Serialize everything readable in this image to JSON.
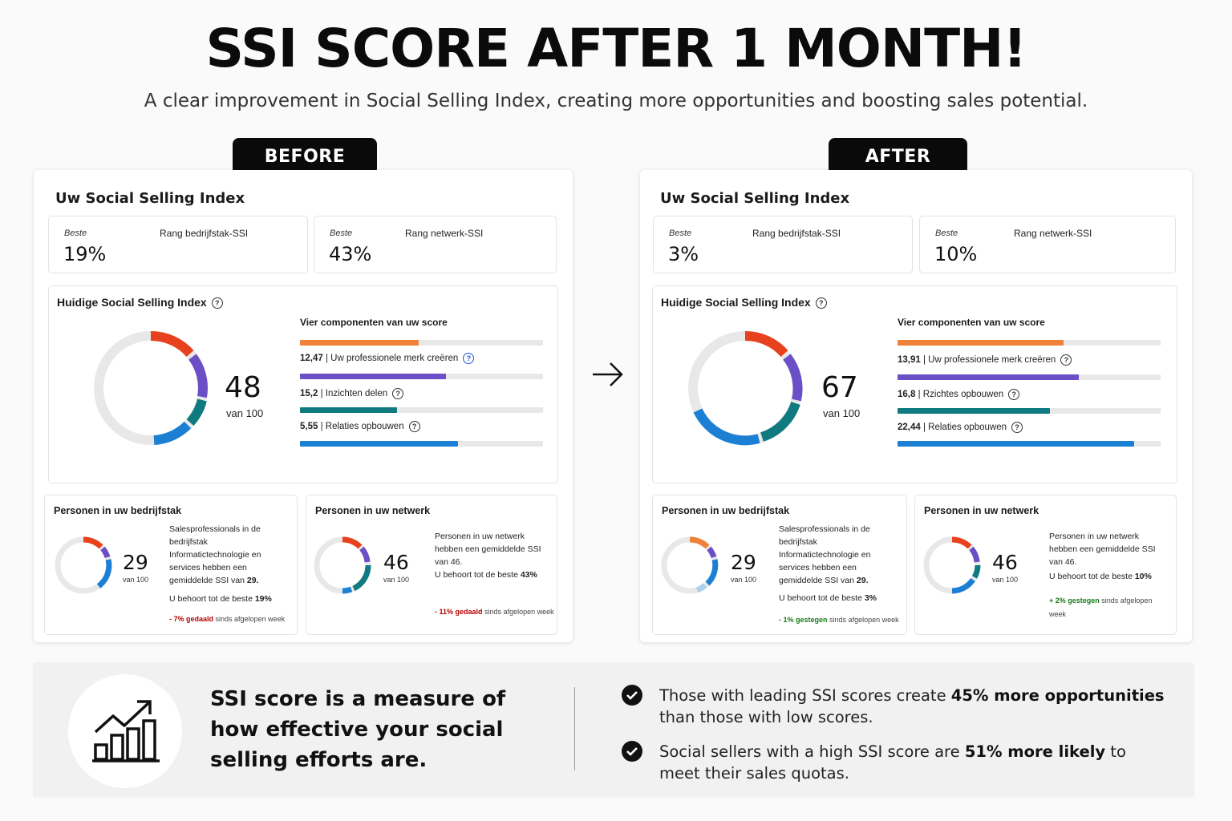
{
  "header": {
    "title": "SSI SCORE AFTER 1 MONTH!",
    "subtitle": "A clear improvement in Social Selling Index, creating more opportunities and boosting sales potential."
  },
  "before": {
    "tag": "BEFORE",
    "panel_title": "Uw Social Selling Index",
    "rank_industry": {
      "best": "Beste",
      "label": "Rang bedrijfstak-SSI",
      "value": "19%"
    },
    "rank_network": {
      "best": "Beste",
      "label": "Rang netwerk-SSI",
      "value": "43%"
    },
    "current": {
      "title": "Huidige Social Selling Index",
      "score": "48",
      "score_sub": "van 100",
      "components_title": "Vier componenten van uw score",
      "components": [
        {
          "value": "12,47",
          "label": "Uw professionele merk creëren",
          "fill": 0.49,
          "color": "#f0813a"
        },
        {
          "value": "15,2",
          "label": "Inzichten delen",
          "fill": 0.6,
          "color": "#6a4fc6"
        },
        {
          "value": "5,55",
          "label": "Relaties opbouwen",
          "fill": 0.4,
          "color": "#0f7a80"
        },
        {
          "value": "",
          "label": "",
          "fill": 0.65,
          "color": "#1b7fd4"
        }
      ]
    },
    "industry_people": {
      "title": "Personen in uw bedrijfstak",
      "score": "29",
      "score_sub": "van 100",
      "desc": "Salesprofessionals in de bedrijfstak Informatictechnologie en services hebben een gemiddelde SSI van",
      "desc_value": "29.",
      "rank_text": "U behoort tot de beste",
      "rank_value": "19%",
      "change_value": "- 7% gedaald",
      "change_text": "sinds afgelopen week"
    },
    "network_people": {
      "title": "Personen in uw netwerk",
      "score": "46",
      "score_sub": "van 100",
      "desc": "Personen in uw netwerk hebben een gemiddelde SSI van 46.",
      "rank_text": "U behoort tot de beste",
      "rank_value": "43%",
      "change_value": "- 11% gedaald",
      "change_text": "sinds afgelopen week"
    }
  },
  "after": {
    "tag": "AFTER",
    "panel_title": "Uw Social Selling Index",
    "rank_industry": {
      "best": "Beste",
      "label": "Rang bedrijfstak-SSI",
      "value": "3%"
    },
    "rank_network": {
      "best": "Beste",
      "label": "Rang netwerk-SSI",
      "value": "10%"
    },
    "current": {
      "title": "Huidige Social Selling Index",
      "score": "67",
      "score_sub": "van 100",
      "components_title": "Vier componenten van uw score",
      "components": [
        {
          "value": "13,91",
          "label": "Uw professionele merk creëren",
          "fill": 0.63,
          "color": "#f0813a"
        },
        {
          "value": "16,8",
          "label": "Rzichtes opbouwen",
          "fill": 0.69,
          "color": "#6a4fc6"
        },
        {
          "value": "22,44",
          "label": "Relaties opbouwen",
          "fill": 0.58,
          "color": "#0f7a80"
        },
        {
          "value": "",
          "label": "",
          "fill": 0.9,
          "color": "#1b7fd4"
        }
      ]
    },
    "industry_people": {
      "title": "Personen in uw bedrijfstak",
      "score": "29",
      "score_sub": "van 100",
      "desc": "Salesprofessionals in de bedrijfstak Informatictechnologie en services hebben een gemiddelde SSI van",
      "desc_value": "29.",
      "rank_text": "U behoort tot de beste",
      "rank_value": "3%",
      "change_value": "- 1% gestegen",
      "change_text": "sinds afgelopen week"
    },
    "network_people": {
      "title": "Personen in uw netwerk",
      "score": "46",
      "score_sub": "van 100",
      "desc": "Personen in uw netwerk hebben een gemiddelde SSI van 46.",
      "rank_text": "U behoort tot de beste",
      "rank_value": "10%",
      "change_value": "+ 2% gestegen",
      "change_text": "sinds afgelopen week"
    }
  },
  "bottom": {
    "icon": "growth-chart-icon",
    "headline": "SSI score is a measure of how effective your social selling efforts are.",
    "bullets": [
      {
        "pre": "Those with leading SSI scores create ",
        "bold": "45% more opportunities",
        "post": " than those with low scores."
      },
      {
        "pre": "Social sellers with a high SSI score are ",
        "bold": "51% more likely",
        "post": " to meet their sales quotas."
      }
    ]
  },
  "colors": {
    "orange": "#f0813a",
    "red": "#e8411e",
    "purple": "#6a4fc6",
    "teal": "#0f7a80",
    "blue": "#1b7fd4",
    "track": "#e8e8e8"
  }
}
